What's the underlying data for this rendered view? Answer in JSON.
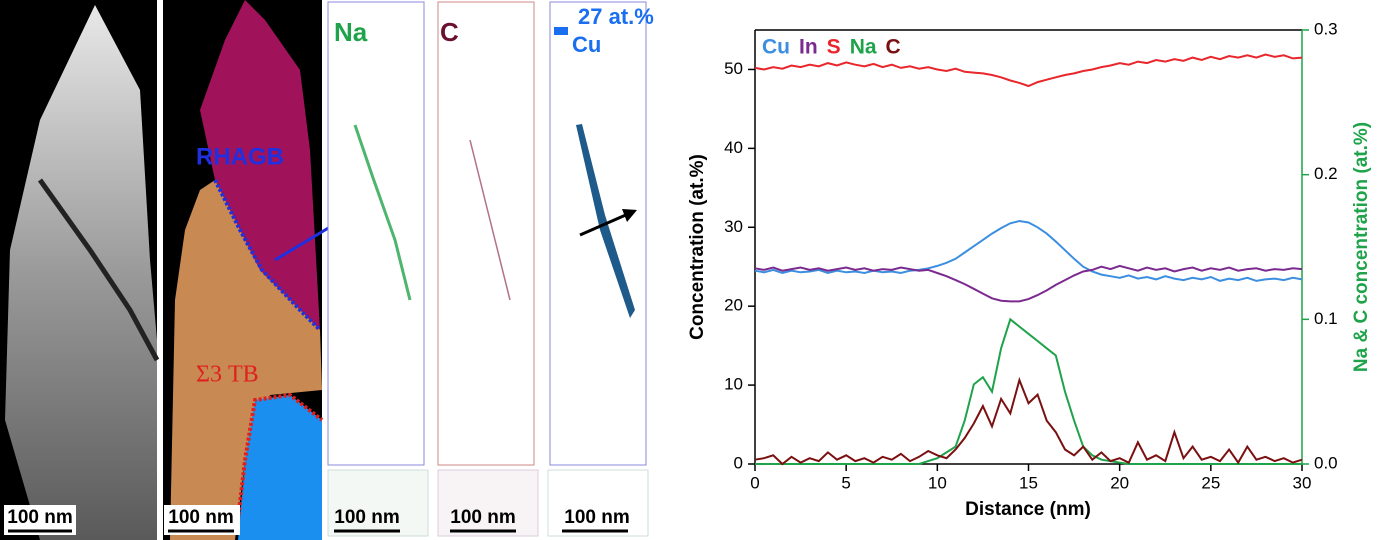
{
  "figure_panels": {
    "scale_bars": [
      "100 nm",
      "100 nm",
      "100 nm",
      "100 nm",
      "100 nm"
    ],
    "boundary_labels": [
      "RHAGB",
      "Σ3 TB"
    ],
    "map_labels": [
      "Na",
      "C"
    ],
    "iso_label": [
      "27 at.%",
      "Cu"
    ]
  },
  "chart_data": {
    "type": "line",
    "xlabel": "Distance (nm)",
    "ylabel": "Concentration (at.%)",
    "y2label": "Na & C concentration (at.%)",
    "xlim": [
      0,
      30
    ],
    "xticks": [
      0,
      5,
      10,
      15,
      20,
      25,
      30
    ],
    "ylim": [
      0,
      55
    ],
    "yticks": [
      0,
      10,
      20,
      30,
      40,
      50
    ],
    "y2lim": [
      0,
      0.3
    ],
    "y2ticks": [
      {
        "value": 0,
        "label": "0.0"
      },
      0.1,
      0.2,
      0.3
    ],
    "y2color": "#1fa34a",
    "x": [
      0,
      0.5,
      1,
      1.5,
      2,
      2.5,
      3,
      3.5,
      4,
      4.5,
      5,
      5.5,
      6,
      6.5,
      7,
      7.5,
      8,
      8.5,
      9,
      9.5,
      10,
      10.5,
      11,
      11.5,
      12,
      12.5,
      13,
      13.5,
      14,
      14.5,
      15,
      15.5,
      16,
      16.5,
      17,
      17.5,
      18,
      18.5,
      19,
      19.5,
      20,
      20.5,
      21,
      21.5,
      22,
      22.5,
      23,
      23.5,
      24,
      24.5,
      25,
      25.5,
      26,
      26.5,
      27,
      27.5,
      28,
      28.5,
      29,
      29.5,
      30
    ],
    "series": [
      {
        "name": "Cu",
        "color": "#3b8ee0",
        "values": [
          24.5,
          24.3,
          24.6,
          24.2,
          24.5,
          24.3,
          24.4,
          24.6,
          24.2,
          24.5,
          24.3,
          24.4,
          24.2,
          24.5,
          24.3,
          24.4,
          24.2,
          24.5,
          24.6,
          24.8,
          25.1,
          25.5,
          26.0,
          26.8,
          27.6,
          28.4,
          29.2,
          29.9,
          30.5,
          30.8,
          30.6,
          30.0,
          29.2,
          28.2,
          27.1,
          26.0,
          25.0,
          24.4,
          24.0,
          23.8,
          23.6,
          23.9,
          23.5,
          23.7,
          23.4,
          23.8,
          23.5,
          23.3,
          23.6,
          23.4,
          23.7,
          23.2,
          23.5,
          23.3,
          23.6,
          23.2,
          23.4,
          23.5,
          23.3,
          23.6,
          23.4
        ]
      },
      {
        "name": "In",
        "color": "#7b2a8f",
        "values": [
          24.8,
          24.6,
          24.9,
          24.5,
          24.7,
          24.9,
          24.6,
          24.8,
          24.5,
          24.7,
          24.9,
          24.6,
          24.8,
          24.5,
          24.7,
          24.6,
          24.9,
          24.7,
          24.5,
          24.6,
          24.2,
          23.8,
          23.3,
          22.8,
          22.2,
          21.6,
          21.0,
          20.7,
          20.6,
          20.6,
          20.9,
          21.4,
          22.0,
          22.7,
          23.3,
          23.9,
          24.4,
          24.6,
          25.0,
          24.7,
          25.1,
          24.8,
          24.5,
          24.9,
          24.6,
          24.8,
          24.4,
          24.7,
          24.9,
          24.5,
          24.8,
          24.6,
          24.9,
          24.5,
          24.7,
          24.8,
          24.5,
          24.7,
          24.6,
          24.8,
          24.7
        ]
      },
      {
        "name": "S",
        "color": "#e8262b",
        "values": [
          50.2,
          50.0,
          50.3,
          50.1,
          50.5,
          50.3,
          50.6,
          50.4,
          50.8,
          50.5,
          50.9,
          50.6,
          50.4,
          50.7,
          50.3,
          50.6,
          50.2,
          50.4,
          50.1,
          50.3,
          50.0,
          49.8,
          50.1,
          49.7,
          49.6,
          49.5,
          49.3,
          49.0,
          48.6,
          48.3,
          47.9,
          48.4,
          48.7,
          49.0,
          49.3,
          49.5,
          49.8,
          50.0,
          50.3,
          50.5,
          50.8,
          50.6,
          51.0,
          50.8,
          51.2,
          51.0,
          51.3,
          51.1,
          51.5,
          51.2,
          51.6,
          51.3,
          51.7,
          51.5,
          51.8,
          51.5,
          51.9,
          51.6,
          51.8,
          51.4,
          51.5
        ]
      },
      {
        "name": "Na",
        "color": "#1fa34a",
        "axis": "y2",
        "values": [
          0,
          0,
          0,
          0,
          0,
          0,
          0,
          0,
          0,
          0,
          0,
          0,
          0,
          0,
          0,
          0,
          0,
          0,
          0,
          0.002,
          0.004,
          0.008,
          0.012,
          0.03,
          0.055,
          0.06,
          0.05,
          0.08,
          0.1,
          0.095,
          0.09,
          0.085,
          0.08,
          0.075,
          0.05,
          0.03,
          0.012,
          0.006,
          0.003,
          0.002,
          0.001,
          0,
          0,
          0,
          0,
          0,
          0,
          0,
          0,
          0,
          0,
          0,
          0,
          0,
          0,
          0,
          0,
          0,
          0,
          0,
          0
        ]
      },
      {
        "name": "C",
        "color": "#7a1010",
        "axis": "y2",
        "values": [
          0.003,
          0.004,
          0.006,
          0,
          0.005,
          0.001,
          0.004,
          0.002,
          0.008,
          0.003,
          0.006,
          0.002,
          0.004,
          0.001,
          0.005,
          0.003,
          0.007,
          0.002,
          0.005,
          0.009,
          0.006,
          0.004,
          0.01,
          0.018,
          0.028,
          0.04,
          0.026,
          0.045,
          0.035,
          0.058,
          0.042,
          0.048,
          0.03,
          0.022,
          0.01,
          0.006,
          0.012,
          0.003,
          0.008,
          0.002,
          0.004,
          0.001,
          0.015,
          0.003,
          0.006,
          0.002,
          0.022,
          0.004,
          0.012,
          0.003,
          0.005,
          0.002,
          0.01,
          0.001,
          0.012,
          0.003,
          0.005,
          0.002,
          0.004,
          0.001,
          0.003
        ]
      }
    ]
  }
}
